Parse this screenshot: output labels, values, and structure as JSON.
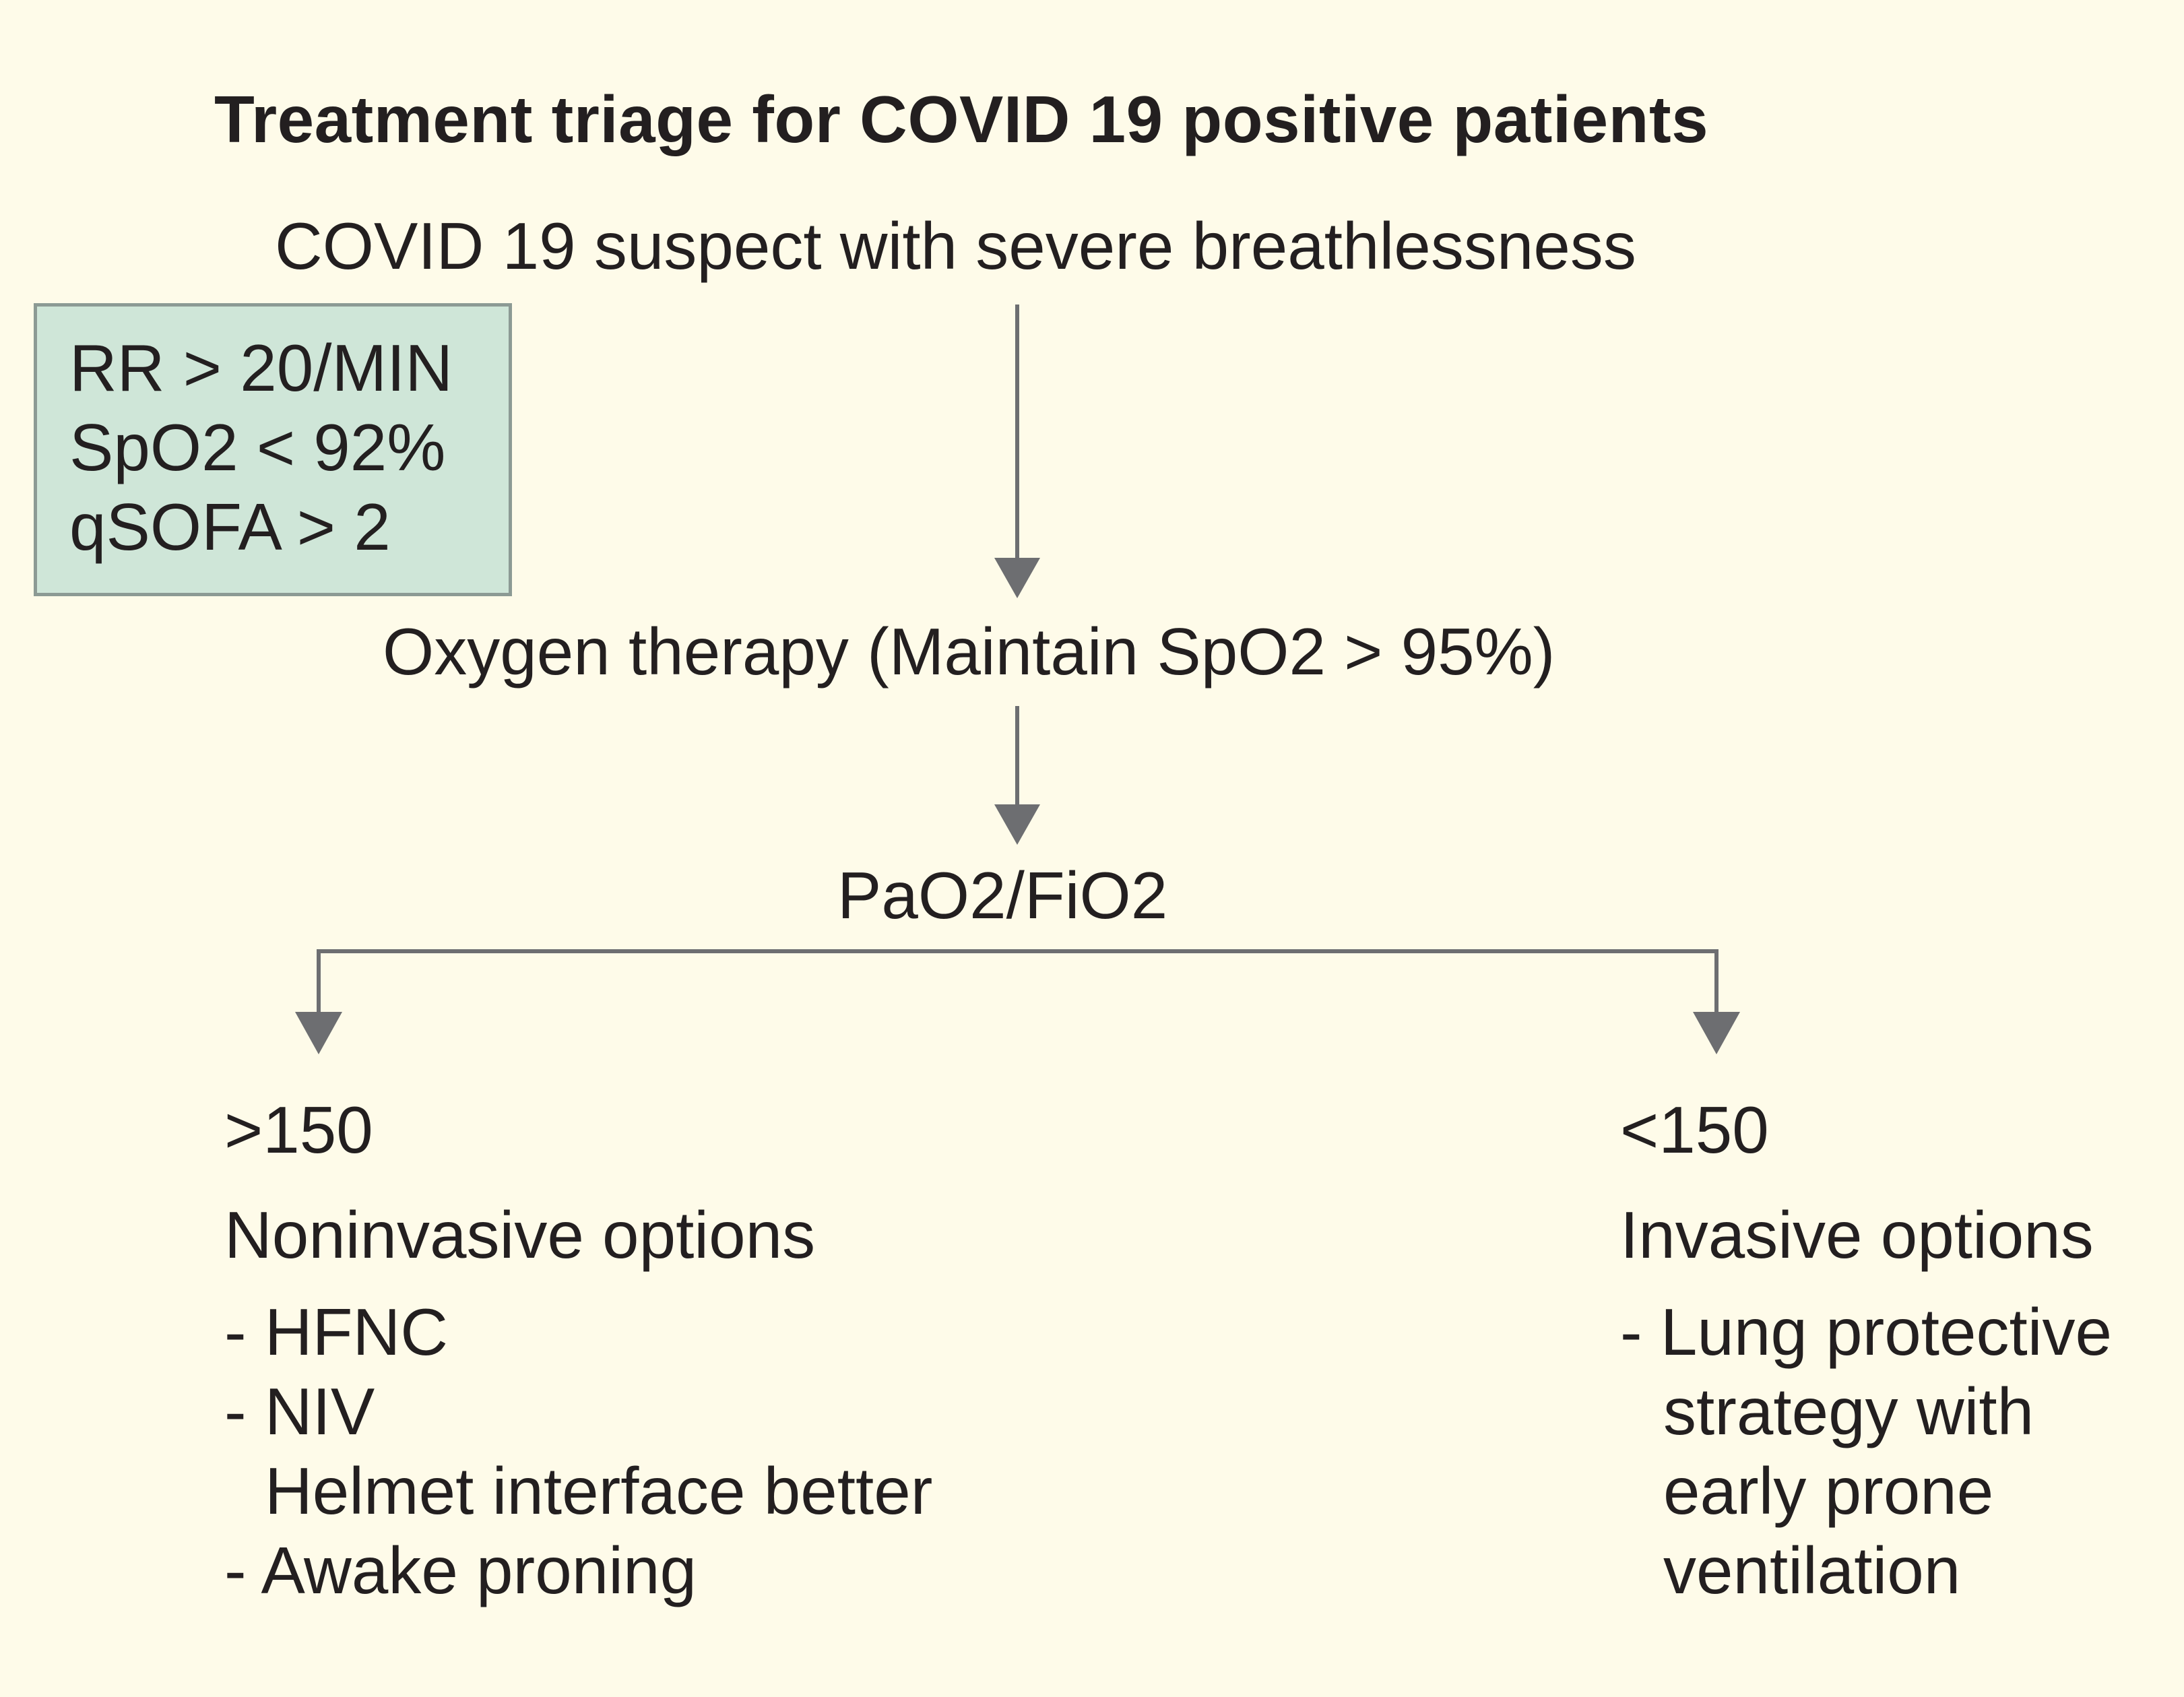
{
  "title": "Treatment triage for COVID 19 positive patients",
  "start_node": "COVID 19 suspect with severe breathlessness",
  "criteria": [
    "RR > 20/MIN",
    "SpO2 < 92%",
    "qSOFA > 2"
  ],
  "oxygen_node": "Oxygen therapy (Maintain SpO2 > 95%)",
  "ratio_node": "PaO2/FiO2",
  "left_branch": {
    "threshold": ">150",
    "heading": "Noninvasive options",
    "lines": [
      "- HFNC",
      "- NIV",
      "  Helmet interface better",
      "- Awake proning"
    ]
  },
  "right_branch": {
    "threshold": "<150",
    "heading": "Invasive options",
    "lines": [
      "- Lung protective",
      "  strategy with",
      "  early prone",
      "  ventilation"
    ]
  },
  "colors": {
    "background": "#fefbe9",
    "criteria_box_fill": "#cfe6d8",
    "criteria_box_border": "#8c9a94",
    "connector": "#6d6e71",
    "text": "#231f20"
  }
}
